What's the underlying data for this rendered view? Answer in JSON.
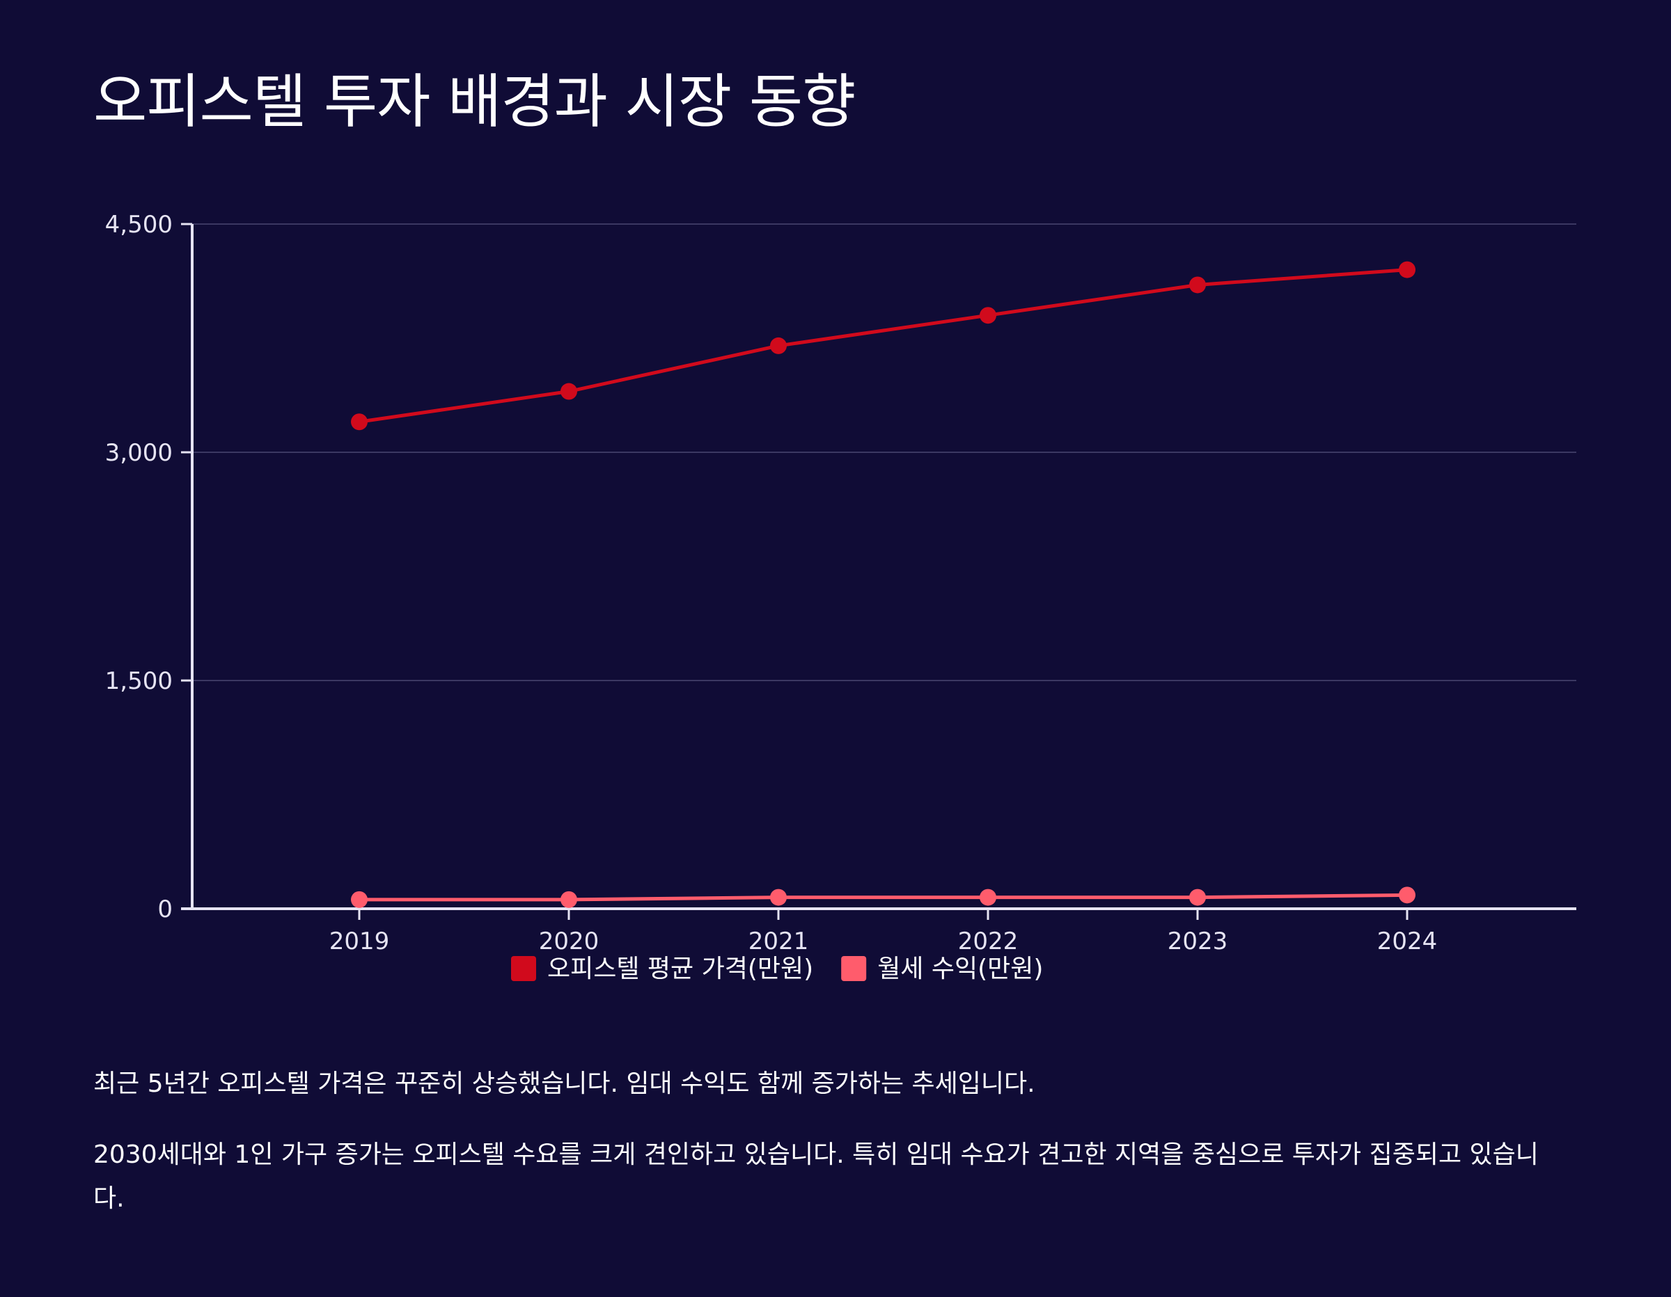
{
  "title": "오피스텔 투자 배경과 시장 동향",
  "chart_data": {
    "type": "line",
    "title": "",
    "xlabel": "",
    "ylabel": "",
    "categories": [
      "2019",
      "2020",
      "2021",
      "2022",
      "2023",
      "2024"
    ],
    "series": [
      {
        "name": "오피스텔 평균 가격(만원)",
        "color": "#d10a1c",
        "values": [
          3200,
          3400,
          3700,
          3900,
          4100,
          4200
        ]
      },
      {
        "name": "월세 수익(만원)",
        "color": "#ff5c6c",
        "values": [
          60,
          60,
          75,
          75,
          75,
          90
        ]
      }
    ],
    "ylim": [
      0,
      4500
    ],
    "yticks": [
      0,
      1500,
      3000,
      4500
    ],
    "ytick_labels": [
      "0",
      "1,500",
      "3,000",
      "4,500"
    ],
    "grid": true,
    "legend_position": "bottom-center"
  },
  "paragraphs": [
    "최근 5년간 오피스텔 가격은 꾸준히 상승했습니다. 임대 수익도 함께 증가하는 추세입니다.",
    "2030세대와 1인 가구 증가는 오피스텔 수요를 크게 견인하고 있습니다. 특히 임대 수요가 견고한 지역을 중심으로 투자가 집중되고 있습니다."
  ]
}
